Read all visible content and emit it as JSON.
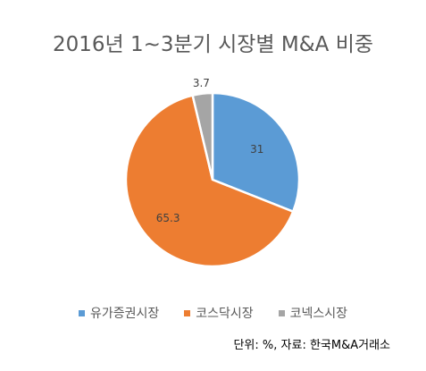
{
  "chart_data": {
    "type": "pie",
    "title": "2016년 1~3분기 시장별 M&A 비중",
    "slices": [
      {
        "name": "유가증권시장",
        "value": 31,
        "label": "31",
        "color": "#5B9BD5"
      },
      {
        "name": "코스닥시장",
        "value": 65.3,
        "label": "65.3",
        "color": "#ED7D31"
      },
      {
        "name": "코넥스시장",
        "value": 3.7,
        "label": "3.7",
        "color": "#A5A5A5"
      }
    ],
    "legend_position": "bottom"
  },
  "note": "단위: %, 자료: 한국M&A거래소"
}
